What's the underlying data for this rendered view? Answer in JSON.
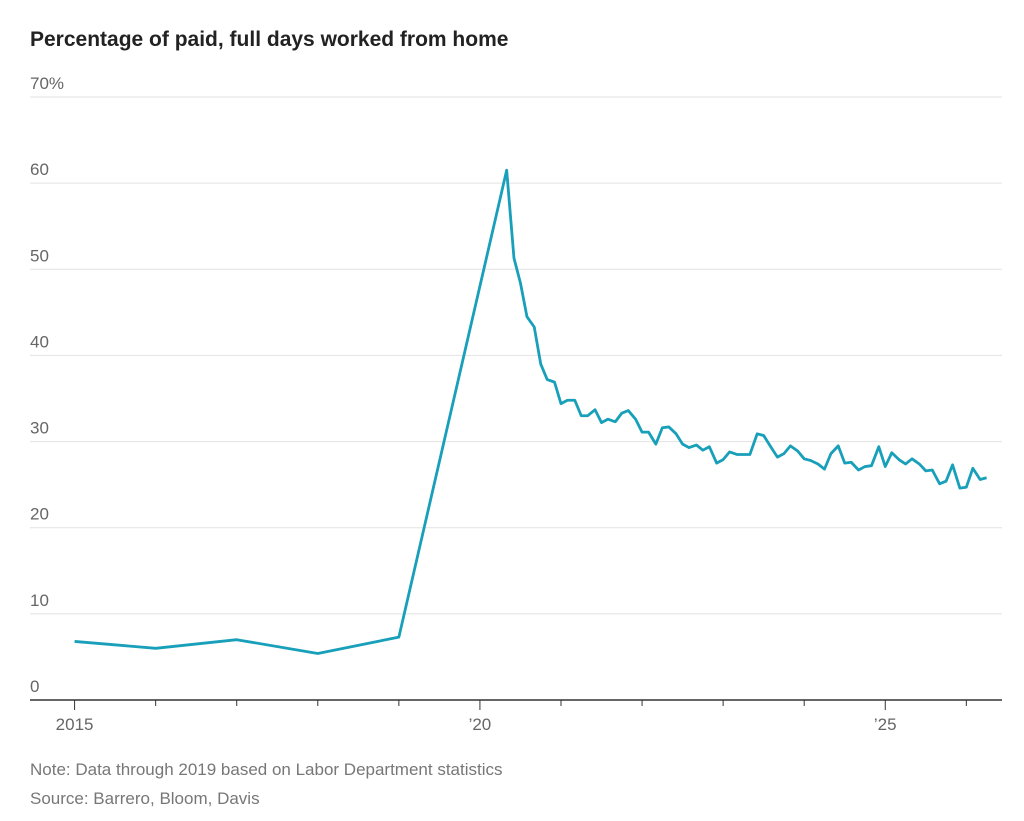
{
  "chart_data": {
    "type": "line",
    "title": "Percentage of paid, full days worked from home",
    "note": "Note: Data through 2019 based on Labor Department statistics",
    "source": "Source: Barrero, Bloom, Davis",
    "series": [
      {
        "color": "#189fb9",
        "x": [
          2015,
          2016,
          2017,
          2018,
          2019,
          2020.33,
          2020.42,
          2020.5,
          2020.58,
          2020.67,
          2020.75,
          2020.83,
          2020.92,
          2021,
          2021.08,
          2021.17,
          2021.25,
          2021.33,
          2021.42,
          2021.5,
          2021.58,
          2021.67,
          2021.75,
          2021.83,
          2021.92,
          2022,
          2022.08,
          2022.17,
          2022.25,
          2022.33,
          2022.42,
          2022.5,
          2022.58,
          2022.67,
          2022.75,
          2022.83,
          2022.92,
          2023,
          2023.08,
          2023.17,
          2023.25,
          2023.33,
          2023.42,
          2023.5,
          2023.58,
          2023.67,
          2023.75,
          2023.83,
          2023.92,
          2024,
          2024.08,
          2024.17,
          2024.25,
          2024.33,
          2024.42,
          2024.5,
          2024.58,
          2024.67,
          2024.75,
          2024.83,
          2024.92,
          2025,
          2025.08,
          2025.17,
          2025.25,
          2025.33,
          2025.42,
          2025.5,
          2025.58,
          2025.67,
          2025.75,
          2025.83,
          2025.92,
          2026,
          2026.08,
          2026.17,
          2026.25
        ],
        "values": [
          6.8,
          6.0,
          7.0,
          5.4,
          7.3,
          61.5,
          51.3,
          48.4,
          44.5,
          43.3,
          39.0,
          37.2,
          36.9,
          34.4,
          34.8,
          34.8,
          33.0,
          33.0,
          33.7,
          32.2,
          32.6,
          32.3,
          33.3,
          33.6,
          32.6,
          31.1,
          31.1,
          29.7,
          31.6,
          31.7,
          30.9,
          29.7,
          29.3,
          29.6,
          29.0,
          29.4,
          27.5,
          27.9,
          28.8,
          28.5,
          28.5,
          28.5,
          30.9,
          30.7,
          29.5,
          28.2,
          28.6,
          29.5,
          28.9,
          28.0,
          27.8,
          27.4,
          26.8,
          28.6,
          29.5,
          27.5,
          27.6,
          26.7,
          27.1,
          27.2,
          29.4,
          27.1,
          28.7,
          27.9,
          27.4,
          28.0,
          27.4,
          26.6,
          26.7,
          25.1,
          25.4,
          27.3,
          24.6,
          24.7,
          26.9,
          25.6,
          25.8
        ]
      }
    ],
    "xlim": [
      2014.45,
      2026.44
    ],
    "xticks": [
      2015,
      {
        "value": 2020,
        "label": "’20"
      },
      {
        "value": 2025,
        "label": "’25"
      }
    ],
    "xminorticks": [
      2016,
      2017,
      2018,
      2019,
      2021,
      2022,
      2023,
      2024,
      2026
    ],
    "ylim": [
      0,
      70
    ],
    "yticks": [
      0,
      10,
      20,
      30,
      40,
      50,
      60,
      {
        "value": 70,
        "label": "70%"
      }
    ],
    "grid": true
  }
}
